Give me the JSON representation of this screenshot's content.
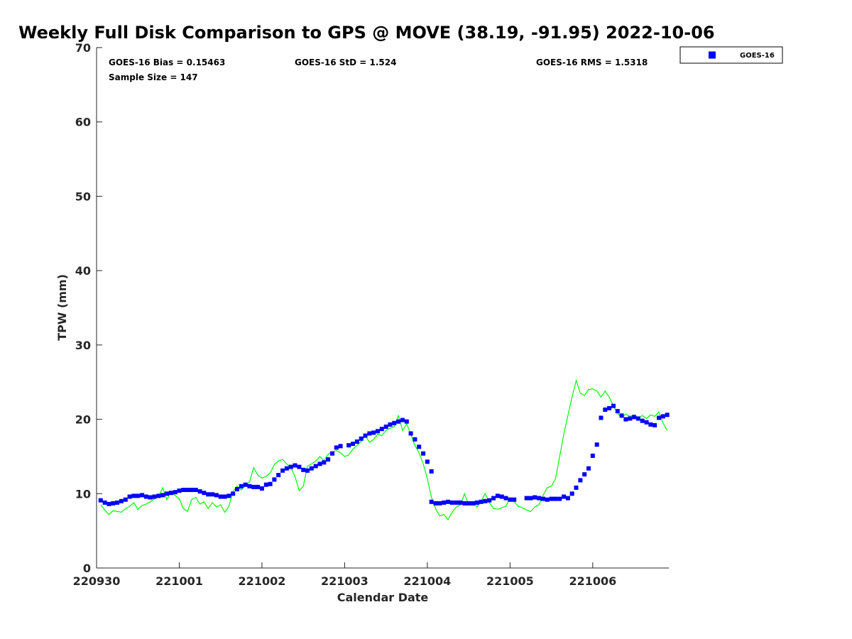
{
  "chart_data": {
    "type": "scatter",
    "title": "Weekly Full Disk Comparison to GPS @ MOVE (38.19, -91.95) 2022-10-06",
    "xlabel": "Calendar Date",
    "ylabel": "TPW (mm)",
    "xlim": [
      "220930",
      "221006 ~21:00"
    ],
    "ylim": [
      0,
      70
    ],
    "yticks": [
      "0",
      "10",
      "20",
      "30",
      "40",
      "50",
      "60",
      "70"
    ],
    "xticks": [
      "220930",
      "221001",
      "221002",
      "221003",
      "221004",
      "221005",
      "221006"
    ],
    "grid": false,
    "legend_position": "top-right, outside plot",
    "stats": {
      "bias": "GOES-16 Bias = 0.15463",
      "std": "GOES-16 StD = 1.524",
      "rms": "GOES-16 RMS = 1.5318",
      "sample": "Sample Size = 147"
    },
    "series": [
      {
        "name": "GOES-16",
        "kind": "markers",
        "color": "#0000ff",
        "points": [
          [
            0.05,
            9.1
          ],
          [
            0.1,
            8.8
          ],
          [
            0.15,
            8.6
          ],
          [
            0.2,
            8.7
          ],
          [
            0.25,
            8.8
          ],
          [
            0.3,
            9.0
          ],
          [
            0.35,
            9.2
          ],
          [
            0.4,
            9.6
          ],
          [
            0.45,
            9.7
          ],
          [
            0.5,
            9.7
          ],
          [
            0.55,
            9.8
          ],
          [
            0.6,
            9.6
          ],
          [
            0.65,
            9.5
          ],
          [
            0.7,
            9.6
          ],
          [
            0.75,
            9.7
          ],
          [
            0.8,
            9.8
          ],
          [
            0.85,
            10.0
          ],
          [
            0.9,
            10.1
          ],
          [
            0.95,
            10.2
          ],
          [
            1.0,
            10.4
          ],
          [
            1.05,
            10.5
          ],
          [
            1.05,
            10.5
          ],
          [
            1.1,
            10.5
          ],
          [
            1.15,
            10.5
          ],
          [
            1.2,
            10.5
          ],
          [
            1.25,
            10.3
          ],
          [
            1.3,
            10.1
          ],
          [
            1.35,
            9.9
          ],
          [
            1.4,
            9.9
          ],
          [
            1.45,
            9.8
          ],
          [
            1.5,
            9.6
          ],
          [
            1.55,
            9.6
          ],
          [
            1.6,
            9.7
          ],
          [
            1.65,
            10.0
          ],
          [
            1.7,
            10.6
          ],
          [
            1.75,
            11.0
          ],
          [
            1.8,
            11.2
          ],
          [
            1.85,
            11.0
          ],
          [
            1.9,
            10.9
          ],
          [
            1.95,
            10.9
          ],
          [
            2.0,
            10.7
          ],
          [
            2.05,
            11.2
          ],
          [
            2.1,
            11.3
          ],
          [
            2.15,
            11.9
          ],
          [
            2.2,
            12.5
          ],
          [
            2.25,
            13.1
          ],
          [
            2.3,
            13.4
          ],
          [
            2.35,
            13.6
          ],
          [
            2.4,
            13.8
          ],
          [
            2.45,
            13.6
          ],
          [
            2.5,
            13.2
          ],
          [
            2.55,
            13.1
          ],
          [
            2.6,
            13.4
          ],
          [
            2.65,
            13.7
          ],
          [
            2.7,
            14.0
          ],
          [
            2.75,
            14.2
          ],
          [
            2.8,
            14.6
          ],
          [
            2.85,
            15.4
          ],
          [
            2.9,
            16.2
          ],
          [
            2.95,
            16.4
          ],
          [
            3.05,
            16.5
          ],
          [
            3.1,
            16.7
          ],
          [
            3.15,
            17.0
          ],
          [
            3.2,
            17.4
          ],
          [
            3.25,
            17.8
          ],
          [
            3.3,
            18.1
          ],
          [
            3.35,
            18.2
          ],
          [
            3.4,
            18.4
          ],
          [
            3.45,
            18.7
          ],
          [
            3.5,
            19.0
          ],
          [
            3.55,
            19.3
          ],
          [
            3.6,
            19.5
          ],
          [
            3.65,
            19.7
          ],
          [
            3.7,
            19.9
          ],
          [
            3.75,
            19.7
          ],
          [
            3.8,
            18.1
          ],
          [
            3.85,
            17.3
          ],
          [
            3.9,
            16.3
          ],
          [
            3.95,
            15.4
          ],
          [
            4.0,
            14.3
          ],
          [
            4.05,
            13.0
          ],
          [
            4.05,
            8.9
          ],
          [
            4.1,
            8.7
          ],
          [
            4.15,
            8.7
          ],
          [
            4.2,
            8.8
          ],
          [
            4.25,
            8.9
          ],
          [
            4.3,
            8.8
          ],
          [
            4.35,
            8.8
          ],
          [
            4.4,
            8.8
          ],
          [
            4.45,
            8.7
          ],
          [
            4.5,
            8.7
          ],
          [
            4.55,
            8.7
          ],
          [
            4.6,
            8.8
          ],
          [
            4.65,
            8.9
          ],
          [
            4.7,
            9.0
          ],
          [
            4.75,
            9.1
          ],
          [
            4.8,
            9.4
          ],
          [
            4.85,
            9.7
          ],
          [
            4.9,
            9.6
          ],
          [
            4.95,
            9.4
          ],
          [
            5.0,
            9.2
          ],
          [
            5.05,
            9.2
          ],
          [
            5.2,
            9.4
          ],
          [
            5.25,
            9.4
          ],
          [
            5.3,
            9.5
          ],
          [
            5.35,
            9.4
          ],
          [
            5.4,
            9.3
          ],
          [
            5.45,
            9.2
          ],
          [
            5.5,
            9.3
          ],
          [
            5.55,
            9.3
          ],
          [
            5.6,
            9.3
          ],
          [
            5.65,
            9.6
          ],
          [
            5.7,
            9.4
          ],
          [
            5.75,
            10.0
          ],
          [
            5.8,
            10.8
          ],
          [
            5.85,
            11.8
          ],
          [
            5.9,
            12.6
          ],
          [
            5.95,
            13.4
          ],
          [
            6.0,
            15.1
          ],
          [
            6.05,
            16.6
          ],
          [
            6.1,
            20.2
          ],
          [
            6.15,
            21.3
          ],
          [
            6.2,
            21.5
          ],
          [
            6.25,
            21.8
          ],
          [
            6.3,
            21.1
          ],
          [
            6.35,
            20.5
          ],
          [
            6.4,
            20.0
          ],
          [
            6.45,
            20.1
          ],
          [
            6.5,
            20.3
          ],
          [
            6.55,
            20.1
          ],
          [
            6.6,
            19.8
          ],
          [
            6.65,
            19.6
          ],
          [
            6.7,
            19.3
          ],
          [
            6.75,
            19.2
          ],
          [
            6.8,
            20.2
          ],
          [
            6.85,
            20.4
          ],
          [
            6.9,
            20.6
          ],
          [
            6.95,
            20.6
          ],
          [
            7.0,
            20.6
          ]
        ]
      },
      {
        "kind": "line",
        "color": "#00ff00",
        "points": [
          [
            0.05,
            8.5
          ],
          [
            0.1,
            7.8
          ],
          [
            0.15,
            7.2
          ],
          [
            0.2,
            7.7
          ],
          [
            0.25,
            7.6
          ],
          [
            0.3,
            7.5
          ],
          [
            0.35,
            8.0
          ],
          [
            0.4,
            8.3
          ],
          [
            0.45,
            8.8
          ],
          [
            0.5,
            7.9
          ],
          [
            0.55,
            8.4
          ],
          [
            0.6,
            8.6
          ],
          [
            0.65,
            8.9
          ],
          [
            0.7,
            9.3
          ],
          [
            0.75,
            9.6
          ],
          [
            0.8,
            10.8
          ],
          [
            0.85,
            9.2
          ],
          [
            0.9,
            10.2
          ],
          [
            1.0,
            9.3
          ],
          [
            1.05,
            8.0
          ],
          [
            1.1,
            7.6
          ],
          [
            1.15,
            9.2
          ],
          [
            1.2,
            9.5
          ],
          [
            1.25,
            8.6
          ],
          [
            1.3,
            8.9
          ],
          [
            1.35,
            8.0
          ],
          [
            1.4,
            8.8
          ],
          [
            1.45,
            8.2
          ],
          [
            1.5,
            8.5
          ],
          [
            1.55,
            7.5
          ],
          [
            1.6,
            8.3
          ],
          [
            1.65,
            10.3
          ],
          [
            1.7,
            11.0
          ],
          [
            1.75,
            10.5
          ],
          [
            1.8,
            11.1
          ],
          [
            1.85,
            11.6
          ],
          [
            1.9,
            13.5
          ],
          [
            1.95,
            12.5
          ],
          [
            2.0,
            12.1
          ],
          [
            2.05,
            12.3
          ],
          [
            2.1,
            12.8
          ],
          [
            2.15,
            13.9
          ],
          [
            2.2,
            14.4
          ],
          [
            2.25,
            14.6
          ],
          [
            2.3,
            14.0
          ],
          [
            2.35,
            13.5
          ],
          [
            2.4,
            12.3
          ],
          [
            2.45,
            10.4
          ],
          [
            2.5,
            11.0
          ],
          [
            2.55,
            13.7
          ],
          [
            2.6,
            14.0
          ],
          [
            2.65,
            14.4
          ],
          [
            2.7,
            15.0
          ],
          [
            2.75,
            14.4
          ],
          [
            2.8,
            15.3
          ],
          [
            2.85,
            15.6
          ],
          [
            2.9,
            15.8
          ],
          [
            2.95,
            15.5
          ],
          [
            3.0,
            15.0
          ],
          [
            3.05,
            15.2
          ],
          [
            3.1,
            16.0
          ],
          [
            3.15,
            16.5
          ],
          [
            3.2,
            17.0
          ],
          [
            3.25,
            17.8
          ],
          [
            3.3,
            16.9
          ],
          [
            3.35,
            17.3
          ],
          [
            3.4,
            18.0
          ],
          [
            3.45,
            17.8
          ],
          [
            3.5,
            18.5
          ],
          [
            3.55,
            18.8
          ],
          [
            3.6,
            19.0
          ],
          [
            3.65,
            20.5
          ],
          [
            3.7,
            18.5
          ],
          [
            3.75,
            19.4
          ],
          [
            3.8,
            18.0
          ],
          [
            3.85,
            16.5
          ],
          [
            3.9,
            15.5
          ],
          [
            3.95,
            14.0
          ],
          [
            4.0,
            12.0
          ],
          [
            4.05,
            9.5
          ],
          [
            4.1,
            8.0
          ],
          [
            4.15,
            7.0
          ],
          [
            4.2,
            7.2
          ],
          [
            4.25,
            6.5
          ],
          [
            4.3,
            7.5
          ],
          [
            4.35,
            8.2
          ],
          [
            4.4,
            8.5
          ],
          [
            4.45,
            10.0
          ],
          [
            4.5,
            8.5
          ],
          [
            4.55,
            8.9
          ],
          [
            4.6,
            8.2
          ],
          [
            4.65,
            9.0
          ],
          [
            4.7,
            10.0
          ],
          [
            4.75,
            8.8
          ],
          [
            4.8,
            8.0
          ],
          [
            4.85,
            7.9
          ],
          [
            4.9,
            8.1
          ],
          [
            4.95,
            8.3
          ],
          [
            5.0,
            9.4
          ],
          [
            5.05,
            8.9
          ],
          [
            5.1,
            8.3
          ],
          [
            5.15,
            8.1
          ],
          [
            5.2,
            7.8
          ],
          [
            5.25,
            7.6
          ],
          [
            5.3,
            8.2
          ],
          [
            5.35,
            8.5
          ],
          [
            5.4,
            9.8
          ],
          [
            5.45,
            10.8
          ],
          [
            5.5,
            11.0
          ],
          [
            5.55,
            12.0
          ],
          [
            5.6,
            15.0
          ],
          [
            5.65,
            18.0
          ],
          [
            5.7,
            20.5
          ],
          [
            5.75,
            23.0
          ],
          [
            5.8,
            25.2
          ],
          [
            5.85,
            23.5
          ],
          [
            5.9,
            23.2
          ],
          [
            5.95,
            24.0
          ],
          [
            6.0,
            24.1
          ],
          [
            6.05,
            23.8
          ],
          [
            6.1,
            23.0
          ],
          [
            6.15,
            23.8
          ],
          [
            6.2,
            23.0
          ],
          [
            6.25,
            21.8
          ],
          [
            6.3,
            20.8
          ],
          [
            6.35,
            20.2
          ],
          [
            6.4,
            20.7
          ],
          [
            6.45,
            20.4
          ],
          [
            6.5,
            20.6
          ],
          [
            6.55,
            20.2
          ],
          [
            6.6,
            20.5
          ],
          [
            6.65,
            20.1
          ],
          [
            6.7,
            20.6
          ],
          [
            6.75,
            20.4
          ],
          [
            6.8,
            21.0
          ],
          [
            6.85,
            19.5
          ],
          [
            6.9,
            18.5
          ],
          [
            6.95,
            18.2
          ],
          [
            7.0,
            19.3
          ]
        ]
      }
    ]
  }
}
